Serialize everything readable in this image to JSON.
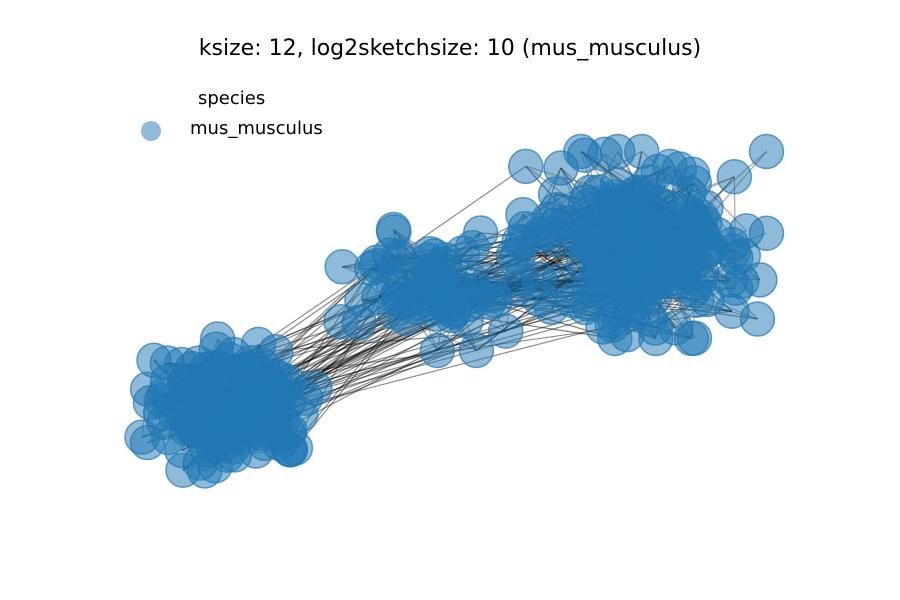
{
  "figure": {
    "title": "ksize: 12, log2sketchsize: 10 (mus_musculus)",
    "legend": {
      "title": "species",
      "entries": [
        {
          "label": "mus_musculus",
          "color": "#1f77b4"
        }
      ]
    },
    "graph": {
      "node_color": "#1f77b4",
      "node_alpha": 0.5,
      "edge_color": "#000000",
      "clusters": [
        {
          "name": "left-cluster",
          "species": "mus_musculus"
        },
        {
          "name": "middle-cluster",
          "species": "mus_musculus"
        },
        {
          "name": "right-cluster",
          "species": "mus_musculus"
        }
      ]
    }
  }
}
